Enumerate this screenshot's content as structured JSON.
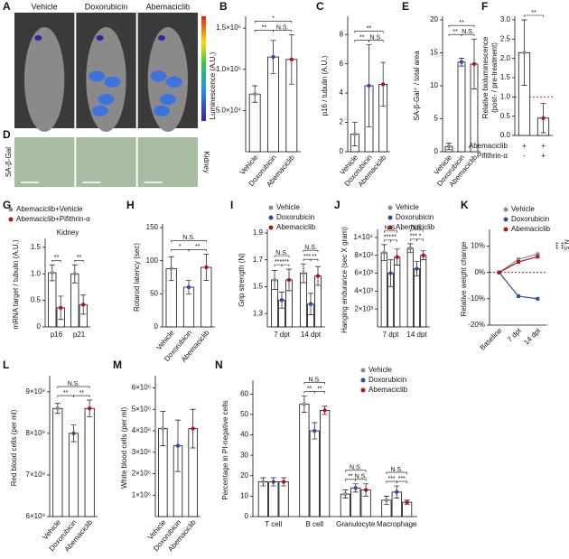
{
  "chart_data": [
    {
      "panel": "A",
      "type": "image",
      "columns": [
        "Vehicle",
        "Doxorubicin",
        "Abemaciclib"
      ]
    },
    {
      "panel": "D",
      "type": "image",
      "ylabel": "SA-β-Gal",
      "side_label": "Kidney"
    },
    {
      "panel": "B",
      "type": "bar",
      "ylabel": "Luminescence (A.U.)",
      "categories": [
        "Vehicle",
        "Doxorubicin",
        "Abemaciclib"
      ],
      "values": [
        70000,
        115000,
        112000
      ],
      "errors": [
        10000,
        20000,
        30000
      ],
      "colors": [
        "#8c8c8c",
        "#2c4ea3",
        "#b3161c"
      ],
      "ylim": [
        0,
        160000
      ],
      "yticks": [
        {
          "value": 50000,
          "label": "5.0×10⁴"
        },
        {
          "value": 100000,
          "label": "1.0×10⁵"
        },
        {
          "value": 150000,
          "label": "1.5×10⁵"
        }
      ],
      "annotations": [
        "*",
        "**",
        "N.S."
      ]
    },
    {
      "panel": "C",
      "type": "bar",
      "ylabel": "p16 / tubulin (A.U.)",
      "categories": [
        "Vehicle",
        "Doxorubicin",
        "Abemaciclib"
      ],
      "values": [
        1.2,
        4.5,
        4.6
      ],
      "errors": [
        0.8,
        2.8,
        1.5
      ],
      "colors": [
        "#8c8c8c",
        "#2c4ea3",
        "#b3161c"
      ],
      "ylim": [
        0,
        9
      ],
      "yticks": [
        0,
        2,
        4,
        6,
        8
      ],
      "annotations": [
        "**",
        "**",
        "N.S."
      ]
    },
    {
      "panel": "E",
      "type": "bar",
      "ylabel": "SA-β-Gal⁺ / total area",
      "categories": [
        "Vehicle",
        "Doxorubicin",
        "Abemaciclib"
      ],
      "values": [
        0.8,
        13.6,
        13.3
      ],
      "errors": [
        0.5,
        0.6,
        3.8
      ],
      "colors": [
        "#8c8c8c",
        "#2c4ea3",
        "#b3161c"
      ],
      "ylim": [
        0,
        20
      ],
      "yticks": [
        0,
        5,
        10,
        15,
        20
      ],
      "annotations": [
        "**",
        "**",
        "N.S."
      ]
    },
    {
      "panel": "F",
      "type": "bar",
      "ylabel": [
        "Relative bioluminescence",
        "(post- / pre-treatment)"
      ],
      "values": [
        2.15,
        0.45
      ],
      "errors": [
        0.85,
        0.38
      ],
      "colors": [
        "#8c8c8c",
        "#b3161c"
      ],
      "ylim": [
        0,
        3
      ],
      "yticks": [
        {
          "value": 0,
          "label": "0.0"
        },
        {
          "value": 0.5,
          "label": "0.5"
        },
        {
          "value": 1,
          "label": "1.0"
        },
        {
          "value": 1.5,
          "label": "1.5"
        },
        {
          "value": 2,
          "label": "2.0"
        },
        {
          "value": 2.5,
          "label": "2.5"
        },
        {
          "value": 3,
          "label": "3.0"
        }
      ],
      "hline": 1,
      "row_labels": [
        "Abemaciclib",
        "Pifithrin-α"
      ],
      "conditions": [
        [
          "+",
          "+"
        ],
        [
          "-",
          "+"
        ]
      ],
      "annotations": [
        "**"
      ]
    },
    {
      "panel": "G",
      "type": "bar",
      "subtitle": "Kidney",
      "ylabel": "mRNA target / tubulin (A.U.)",
      "categories": [
        "p16",
        "p21"
      ],
      "series": [
        {
          "name": "Abemaciclib+Vehicle",
          "color": "#8c8c8c",
          "values": [
            1.02,
            1.0
          ],
          "errors": [
            0.15,
            0.17
          ]
        },
        {
          "name": "Abemaciclib+Pifithrin-α",
          "color": "#b3161c",
          "values": [
            0.36,
            0.42
          ],
          "errors": [
            0.22,
            0.18
          ]
        }
      ],
      "ylim": [
        0,
        1.6
      ],
      "yticks": [
        0,
        0.5,
        {
          "value": 1,
          "label": "1.0"
        },
        1.5
      ],
      "annotations": [
        "**",
        "**"
      ]
    },
    {
      "panel": "H",
      "type": "bar",
      "ylabel": "Rotarod latency (sec)",
      "categories": [
        "Vehicle",
        "Doxorubicin",
        "Abemaciclib"
      ],
      "values": [
        88,
        60,
        90
      ],
      "errors": [
        18,
        10,
        20
      ],
      "colors": [
        "#8c8c8c",
        "#2c4ea3",
        "#b3161c"
      ],
      "ylim": [
        0,
        150
      ],
      "yticks": [
        0,
        50,
        100,
        150
      ],
      "annotations": [
        "N.S.",
        "*",
        "**"
      ]
    },
    {
      "panel": "I",
      "type": "bar",
      "ylabel": "Grip strength (N)",
      "categories": [
        "7 dpt",
        "14 dpt"
      ],
      "series": [
        {
          "name": "Vehicle",
          "color": "#8c8c8c",
          "values": [
            1.55,
            1.6
          ],
          "errors": [
            0.07,
            0.07
          ]
        },
        {
          "name": "Doxorubicin",
          "color": "#2c4ea3",
          "values": [
            1.4,
            1.37
          ],
          "errors": [
            0.06,
            0.08
          ]
        },
        {
          "name": "Abemaciclib",
          "color": "#b3161c",
          "values": [
            1.55,
            1.58
          ],
          "errors": [
            0.08,
            0.07
          ]
        }
      ],
      "ylim": [
        1.2,
        1.9
      ],
      "yticks": [
        1.3,
        1.5,
        1.7,
        1.9
      ],
      "annotations": [
        "N.S.",
        "***",
        "***",
        "N.S.",
        "***",
        "**"
      ]
    },
    {
      "panel": "J",
      "type": "bar",
      "ylabel": "Hanging endurance (sec X gram)",
      "categories": [
        "7 dpt",
        "14 dpt"
      ],
      "series": [
        {
          "name": "Vehicle",
          "color": "#8c8c8c",
          "values": [
            8300,
            8800
          ],
          "errors": [
            900,
            500
          ]
        },
        {
          "name": "Doxorubicin",
          "color": "#2c4ea3",
          "values": [
            6000,
            6500
          ],
          "errors": [
            1500,
            800
          ]
        },
        {
          "name": "Abemaciclib",
          "color": "#b3161c",
          "values": [
            7800,
            8000
          ],
          "errors": [
            900,
            500
          ]
        }
      ],
      "ylim": [
        0,
        10500
      ],
      "yticks": [
        {
          "value": 2000,
          "label": "2×10³"
        },
        {
          "value": 4000,
          "label": "4×10³"
        },
        {
          "value": 6000,
          "label": "6×10³"
        },
        {
          "value": 8000,
          "label": "8×10³"
        },
        {
          "value": 10000,
          "label": "1×10⁴"
        }
      ],
      "annotations": [
        "N.S.",
        "***",
        "**",
        "N.S.",
        "***",
        "*"
      ]
    },
    {
      "panel": "K",
      "type": "line",
      "ylabel": "Relative weight change",
      "categories": [
        "Baseline",
        "7 dpt",
        "14 dpt"
      ],
      "series": [
        {
          "name": "Vehicle",
          "color": "#8c8c8c",
          "values": [
            0,
            5,
            7
          ]
        },
        {
          "name": "Doxorubicin",
          "color": "#2c4ea3",
          "values": [
            0,
            -9,
            -10
          ]
        },
        {
          "name": "Abemaciclib",
          "color": "#b3161c",
          "values": [
            0,
            4,
            6
          ]
        }
      ],
      "ylim": [
        -20,
        15
      ],
      "yticks": [
        {
          "value": -20,
          "label": "-20%"
        },
        {
          "value": -10,
          "label": "-10%"
        },
        {
          "value": 0,
          "label": "0%"
        },
        {
          "value": 10,
          "label": "10%"
        }
      ],
      "hline": 0,
      "annotations": [
        "***",
        "***",
        "N.S."
      ]
    },
    {
      "panel": "L",
      "type": "bar",
      "ylabel": "Red blood cells (per ml)",
      "categories": [
        "Vehicle",
        "Doxorubicin",
        "Abemaciclib"
      ],
      "values": [
        8600000000,
        8000000000,
        8600000000
      ],
      "errors": [
        120000000,
        200000000,
        200000000
      ],
      "colors": [
        "#8c8c8c",
        "#2c4ea3",
        "#b3161c"
      ],
      "ylim": [
        6000000000,
        9300000000
      ],
      "yticks": [
        {
          "value": 6000000000,
          "label": "6×10⁹"
        },
        {
          "value": 7000000000,
          "label": "7×10⁹"
        },
        {
          "value": 8000000000,
          "label": "8×10⁹"
        },
        {
          "value": 9000000000,
          "label": "9×10⁹"
        }
      ],
      "annotations": [
        "N.S.",
        "**",
        "**"
      ]
    },
    {
      "panel": "M",
      "type": "bar",
      "ylabel": "White blood cells (per ml)",
      "categories": [
        "Vehicle",
        "Doxorubicin",
        "Abemaciclib"
      ],
      "values": [
        4100000,
        3300000,
        4100000
      ],
      "errors": [
        800000,
        1200000,
        900000
      ],
      "colors": [
        "#8c8c8c",
        "#2c4ea3",
        "#b3161c"
      ],
      "ylim": [
        0,
        6400000
      ],
      "yticks": [
        {
          "value": 1000000,
          "label": "1×10⁶"
        },
        {
          "value": 2000000,
          "label": "2×10⁶"
        },
        {
          "value": 3000000,
          "label": "3×10⁶"
        },
        {
          "value": 4000000,
          "label": "4×10⁶"
        },
        {
          "value": 5000000,
          "label": "5×10⁶"
        },
        {
          "value": 6000000,
          "label": "6×10⁶"
        }
      ]
    },
    {
      "panel": "N",
      "type": "bar",
      "ylabel": "Percentage in PI-negative cells",
      "categories": [
        "T cell",
        "B cell",
        "Granulocyte",
        "Macrophage"
      ],
      "series": [
        {
          "name": "Vehicle",
          "color": "#8c8c8c",
          "values": [
            17,
            55,
            11,
            8
          ],
          "errors": [
            2,
            4,
            2,
            2
          ]
        },
        {
          "name": "Doxorubicin",
          "color": "#2c4ea3",
          "values": [
            17,
            42,
            14,
            12
          ],
          "errors": [
            2,
            4,
            2,
            3
          ]
        },
        {
          "name": "Abemaciclib",
          "color": "#b3161c",
          "values": [
            17,
            52,
            13,
            7
          ],
          "errors": [
            2,
            2,
            3,
            1
          ]
        }
      ],
      "ylim": [
        0,
        65
      ],
      "yticks": [
        0,
        10,
        20,
        30,
        40,
        50,
        60
      ],
      "annotations": [
        "N.S.",
        "**",
        "**",
        "N.S.",
        "**",
        "N.S.",
        "N.S.",
        "***",
        "***"
      ]
    }
  ]
}
